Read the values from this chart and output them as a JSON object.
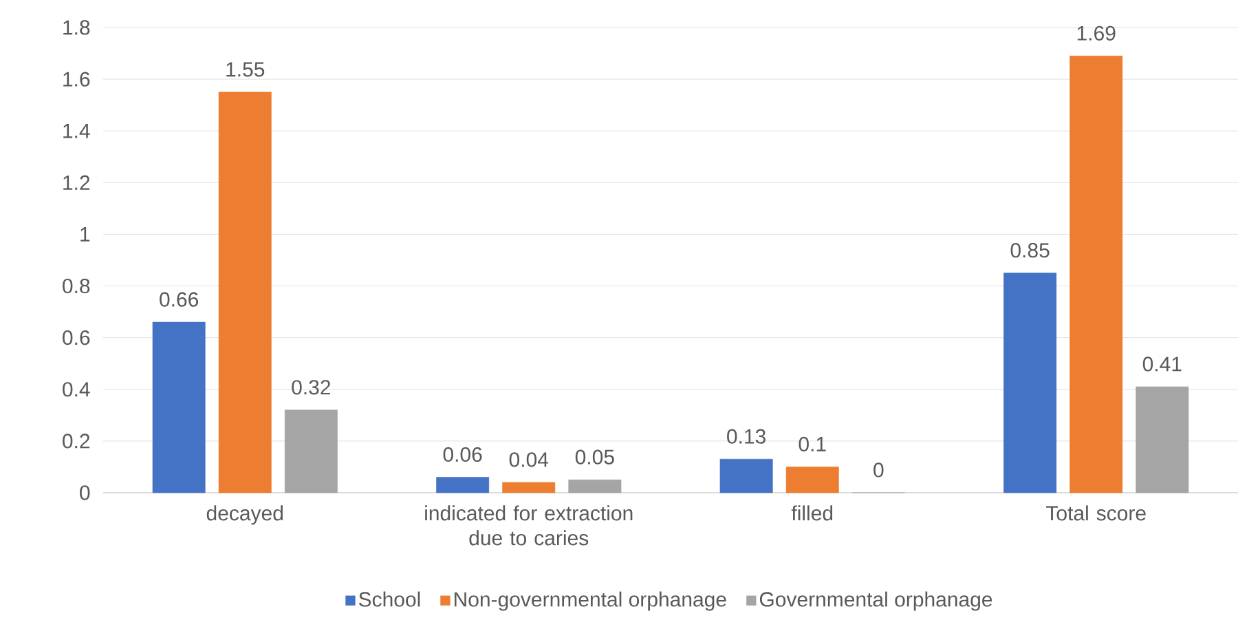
{
  "chart_data": {
    "type": "bar",
    "categories": [
      "decayed",
      "indicated for extraction due to caries",
      "filled",
      "Total score"
    ],
    "series": [
      {
        "name": "School",
        "color": "#4472c4",
        "values": [
          0.66,
          0.06,
          0.13,
          0.85
        ]
      },
      {
        "name": "Non-governmental orphanage",
        "color": "#ed7d31",
        "values": [
          1.55,
          0.04,
          0.1,
          1.69
        ]
      },
      {
        "name": "Governmental orphanage",
        "color": "#a5a5a5",
        "values": [
          0.32,
          0.05,
          0,
          0.41
        ]
      }
    ],
    "ylim": [
      0,
      1.8
    ],
    "yticks": [
      0,
      0.2,
      0.4,
      0.6,
      0.8,
      1,
      1.2,
      1.4,
      1.6,
      1.8
    ],
    "grid": "y",
    "legend": "bottom",
    "data_labels": true
  }
}
